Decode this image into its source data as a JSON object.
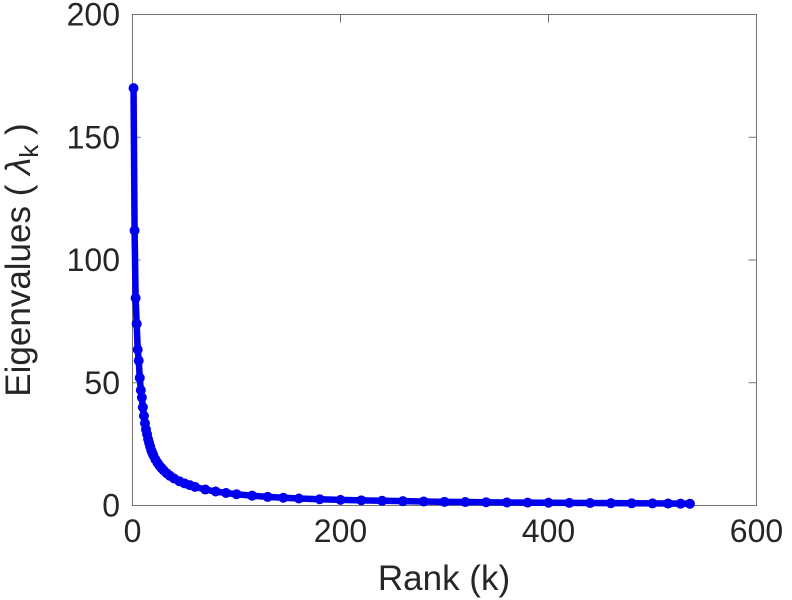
{
  "figure": {
    "background": "#ffffff",
    "axis_color": "#737373",
    "text_color": "#262626"
  },
  "chart_data": {
    "type": "line",
    "title": "",
    "xlabel": "Rank (k)",
    "ylabel": "Eigenvalues ( λ_k )",
    "ylabel_parts": {
      "prefix": "Eigenvalues ( ",
      "symbol": "λ",
      "subscript": "k",
      "suffix": " )"
    },
    "xlim": [
      0,
      600
    ],
    "ylim": [
      0,
      200
    ],
    "xticks": [
      0,
      200,
      400,
      600
    ],
    "yticks": [
      0,
      50,
      100,
      150,
      200
    ],
    "grid": false,
    "legend": null,
    "box": true,
    "marker": "filled-circle",
    "line_color": "#0000ee",
    "series": [
      {
        "name": "eigenvalues",
        "points": [
          [
            1,
            170
          ],
          [
            2,
            112
          ],
          [
            3,
            84.5
          ],
          [
            4,
            74
          ],
          [
            5,
            63.5
          ],
          [
            6,
            59
          ],
          [
            7,
            52
          ],
          [
            8,
            47
          ],
          [
            9,
            44
          ],
          [
            10,
            40
          ],
          [
            11,
            36.5
          ],
          [
            12,
            33.5
          ],
          [
            13,
            31
          ],
          [
            14,
            29
          ],
          [
            15,
            27
          ],
          [
            16,
            25.5
          ],
          [
            17,
            24
          ],
          [
            18,
            22.5
          ],
          [
            19,
            21.5
          ],
          [
            20,
            20.5
          ],
          [
            22,
            18.8
          ],
          [
            24,
            17.4
          ],
          [
            26,
            16.2
          ],
          [
            28,
            15.2
          ],
          [
            30,
            14.3
          ],
          [
            33,
            13.1
          ],
          [
            36,
            12.1
          ],
          [
            40,
            11
          ],
          [
            45,
            9.9
          ],
          [
            50,
            9
          ],
          [
            55,
            8.3
          ],
          [
            60,
            7.6
          ],
          [
            70,
            6.5
          ],
          [
            80,
            5.7
          ],
          [
            90,
            5.1
          ],
          [
            100,
            4.6
          ],
          [
            115,
            4.0
          ],
          [
            130,
            3.5
          ],
          [
            145,
            3.15
          ],
          [
            160,
            2.85
          ],
          [
            180,
            2.55
          ],
          [
            200,
            2.3
          ],
          [
            220,
            2.1
          ],
          [
            240,
            1.92
          ],
          [
            260,
            1.76
          ],
          [
            280,
            1.62
          ],
          [
            300,
            1.5
          ],
          [
            320,
            1.4
          ],
          [
            340,
            1.32
          ],
          [
            360,
            1.24
          ],
          [
            380,
            1.17
          ],
          [
            400,
            1.11
          ],
          [
            420,
            1.05
          ],
          [
            440,
            1.0
          ],
          [
            460,
            0.95
          ],
          [
            480,
            0.9
          ],
          [
            500,
            0.85
          ],
          [
            515,
            0.8
          ],
          [
            527,
            0.75
          ],
          [
            536,
            0.7
          ]
        ]
      }
    ]
  }
}
